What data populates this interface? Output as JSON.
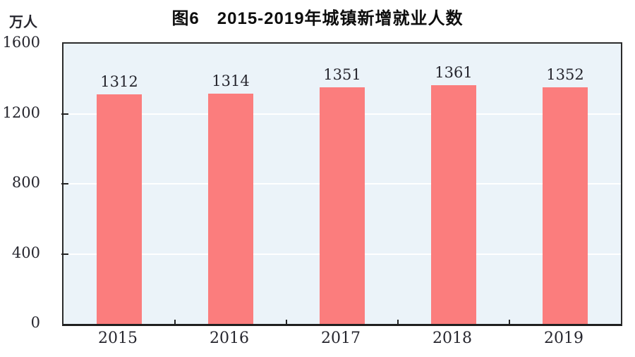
{
  "title": "图6　2015-2019年城镇新增就业人数",
  "colors": {
    "bar": "#FB7D7D",
    "plot_background": "#EBF3F9",
    "gridline": "#FFFFFF",
    "axis": "#242424",
    "text": "#26262E"
  },
  "y_axis": {
    "unit": "万人",
    "ticks": [
      1600,
      1200,
      800,
      400,
      0
    ],
    "gridlines": [
      1200,
      800,
      400
    ]
  },
  "chart_data": {
    "type": "bar",
    "title": "图6　2015-2019年城镇新增就业人数",
    "categories": [
      "2015",
      "2016",
      "2017",
      "2018",
      "2019"
    ],
    "values": [
      1312,
      1314,
      1351,
      1361,
      1352
    ],
    "xlabel": "",
    "ylabel": "万人",
    "ylim": [
      0,
      1600
    ],
    "grid": true,
    "legend": false,
    "data_labels": true
  }
}
